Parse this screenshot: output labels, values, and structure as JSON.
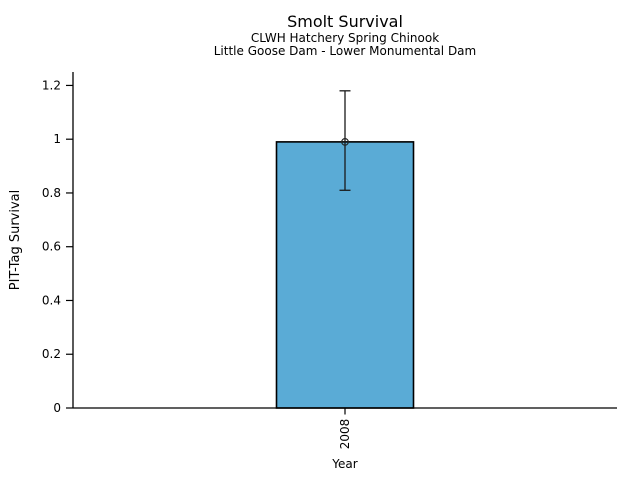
{
  "page": {
    "background_color": "#ffffff",
    "text_color": "#000000"
  },
  "chart_data": {
    "type": "bar",
    "title": "Smolt Survival",
    "subtitles": [
      "CLWH Hatchery Spring Chinook",
      "Little Goose Dam - Lower Monumental Dam"
    ],
    "xlabel": "Year",
    "ylabel": "PIT-Tag Survival",
    "categories": [
      "2008"
    ],
    "values": [
      0.99
    ],
    "error_bars": [
      {
        "lower": 0.81,
        "upper": 1.18
      }
    ],
    "yticks": [
      0,
      0.2,
      0.4,
      0.6,
      0.8,
      1,
      1.2
    ],
    "ytick_labels": [
      "0",
      "0.2",
      "0.4",
      "0.6",
      "0.8",
      "1",
      "1.2"
    ],
    "ylim": [
      0,
      1.25
    ],
    "x_tick_label_rotation": 90,
    "bar_color": "#5aabd6",
    "bar_edge_color": "#000000",
    "errorbar_color": "#1a1a1a",
    "marker": "open-circle",
    "marker_color": "#222222",
    "grid": false,
    "legend": null
  }
}
